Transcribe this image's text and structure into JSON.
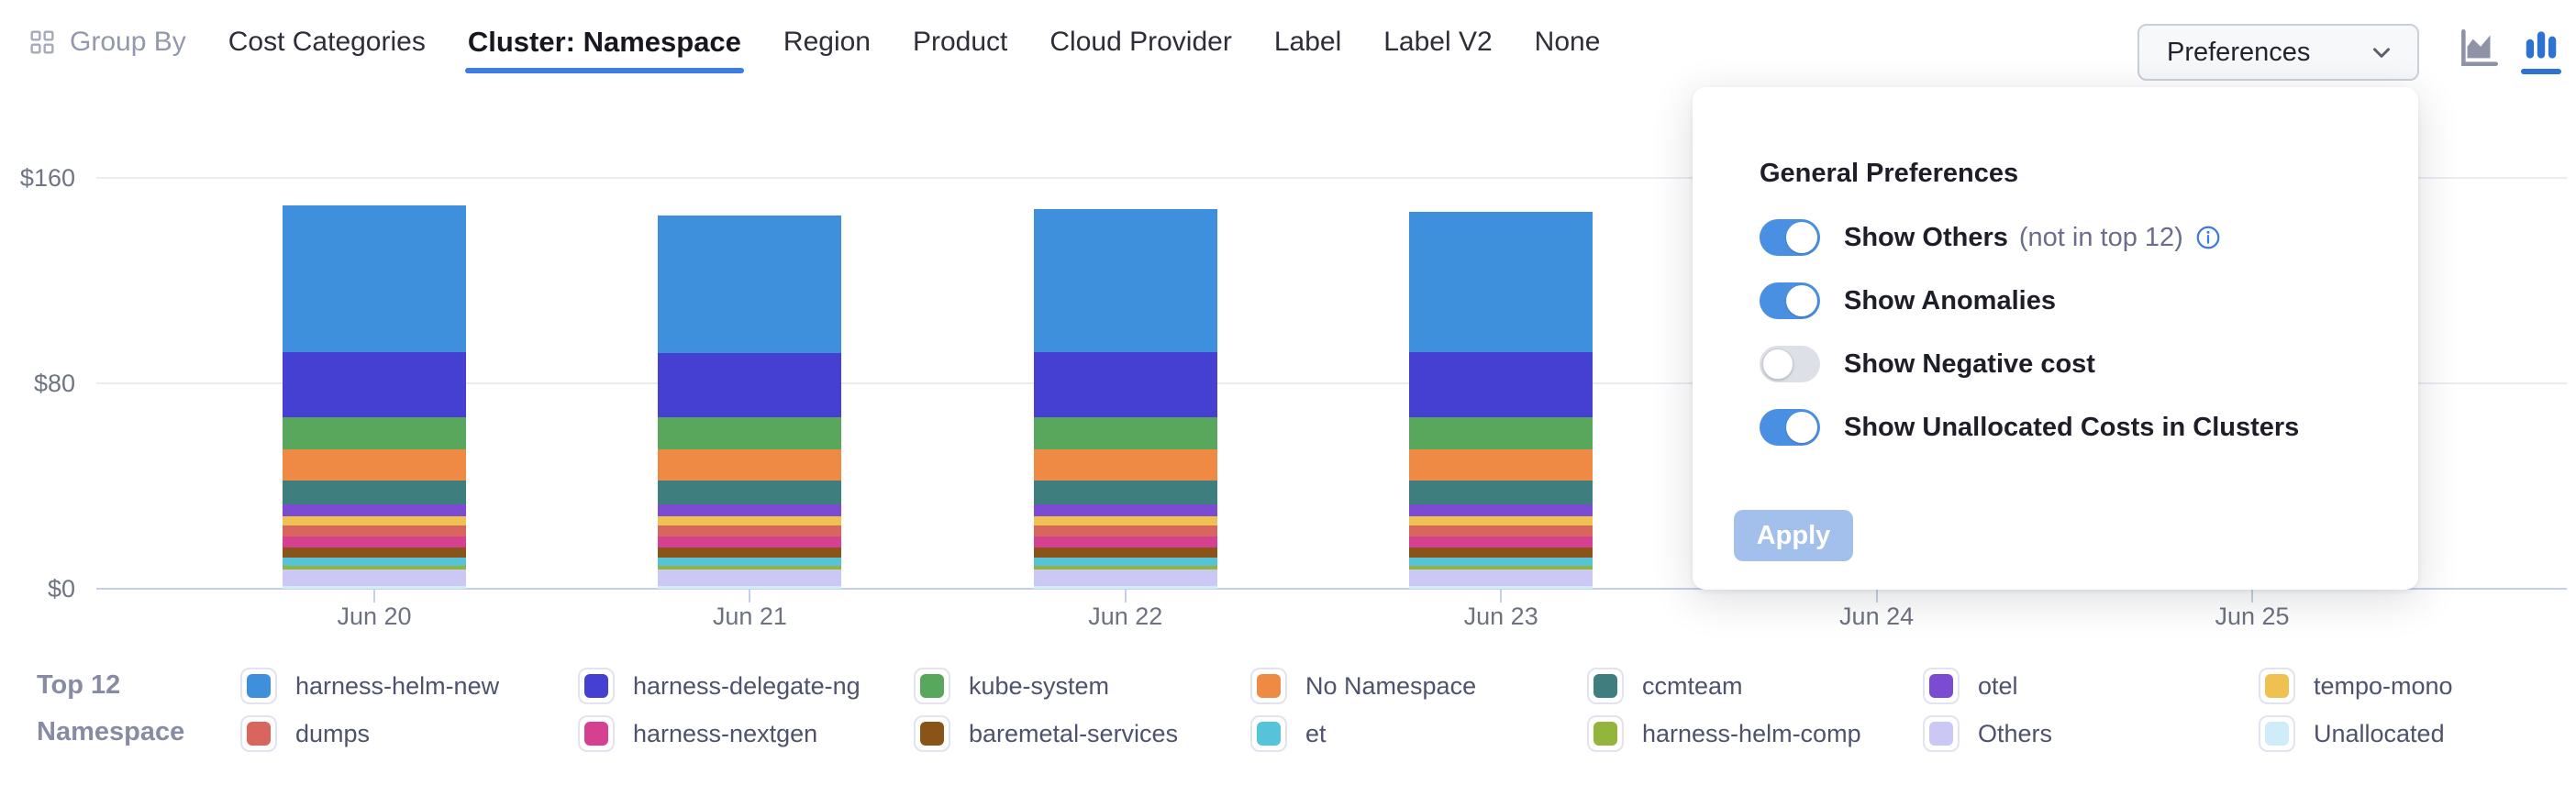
{
  "header": {
    "group_by_label": "Group By",
    "tabs": [
      {
        "label": "Cost Categories",
        "active": false
      },
      {
        "label": "Cluster: Namespace",
        "active": true
      },
      {
        "label": "Region",
        "active": false
      },
      {
        "label": "Product",
        "active": false
      },
      {
        "label": "Cloud Provider",
        "active": false
      },
      {
        "label": "Label",
        "active": false
      },
      {
        "label": "Label V2",
        "active": false
      },
      {
        "label": "None",
        "active": false
      }
    ],
    "preferences_label": "Preferences",
    "chart_type": {
      "options": [
        "area-chart",
        "bar-chart"
      ],
      "active": "bar-chart"
    }
  },
  "preferences_panel": {
    "title": "General Preferences",
    "toggles": [
      {
        "label": "Show Others",
        "suffix": "(not in top 12)",
        "info_icon": true,
        "on": true
      },
      {
        "label": "Show Anomalies",
        "suffix": "",
        "info_icon": false,
        "on": true
      },
      {
        "label": "Show Negative cost",
        "suffix": "",
        "info_icon": false,
        "on": false
      },
      {
        "label": "Show Unallocated Costs in Clusters",
        "suffix": "",
        "info_icon": false,
        "on": true
      }
    ],
    "apply_label": "Apply",
    "apply_enabled": false
  },
  "legend": {
    "title_line1": "Top 12",
    "title_line2": "Namespace"
  },
  "chart_data": {
    "type": "bar",
    "stacked": true,
    "title": "",
    "xlabel": "",
    "ylabel": "",
    "ylim": [
      0,
      160
    ],
    "y_ticks": [
      {
        "label": "$160",
        "value": 160
      },
      {
        "label": "$80",
        "value": 80
      },
      {
        "label": "$0",
        "value": 0
      }
    ],
    "grid": "horizontal",
    "legend_position": "bottom",
    "categories": [
      "Jun 20",
      "Jun 21",
      "Jun 22",
      "Jun 23",
      "Jun 24",
      "Jun 25"
    ],
    "occluded_categories": [
      "Jun 24",
      "Jun 25"
    ],
    "series": [
      {
        "name": "harness-helm-new",
        "color": "#3F90DC",
        "values": [
          57,
          53.5,
          55.5,
          54.5
        ]
      },
      {
        "name": "harness-delegate-ng",
        "color": "#4540D1",
        "values": [
          25.5,
          25,
          25.5,
          25.5
        ]
      },
      {
        "name": "kube-system",
        "color": "#59A75D",
        "values": [
          12.5,
          12.5,
          12.5,
          12.5
        ]
      },
      {
        "name": "No Namespace",
        "color": "#EE8A44",
        "values": [
          12,
          12,
          12,
          12
        ]
      },
      {
        "name": "ccmteam",
        "color": "#3F7E7F",
        "values": [
          9.5,
          9.5,
          9.5,
          9.5
        ]
      },
      {
        "name": "otel",
        "color": "#7B4BD1",
        "values": [
          4.5,
          4.5,
          4.5,
          4.5
        ]
      },
      {
        "name": "tempo-mono",
        "color": "#EFC150",
        "values": [
          3.5,
          3.5,
          3.5,
          3.5
        ]
      },
      {
        "name": "dumps",
        "color": "#D9665D",
        "values": [
          4.5,
          4.5,
          4.5,
          4.5
        ]
      },
      {
        "name": "harness-nextgen",
        "color": "#D64090",
        "values": [
          4.3,
          4.3,
          4.3,
          4.3
        ]
      },
      {
        "name": "baremetal-services",
        "color": "#8A5418",
        "values": [
          4,
          4,
          4,
          4
        ]
      },
      {
        "name": "et",
        "color": "#55C3D8",
        "values": [
          3,
          3,
          3,
          3
        ]
      },
      {
        "name": "harness-helm-comp",
        "color": "#93B43D",
        "values": [
          1.5,
          1.5,
          1.5,
          1.5
        ]
      },
      {
        "name": "Others",
        "color": "#CBC8F5",
        "values": [
          6.5,
          6.5,
          6.5,
          6.5
        ]
      },
      {
        "name": "Unallocated",
        "color": "#CFEDF8",
        "values": [
          1,
          1,
          1,
          1
        ]
      }
    ]
  },
  "colors": {
    "accent_blue": "#3d7ce0",
    "toggle_on": "#4a90e2",
    "apply_disabled": "#a3c0ec",
    "grid_line": "#ebebf2",
    "axis_line": "#c5cfe6"
  }
}
